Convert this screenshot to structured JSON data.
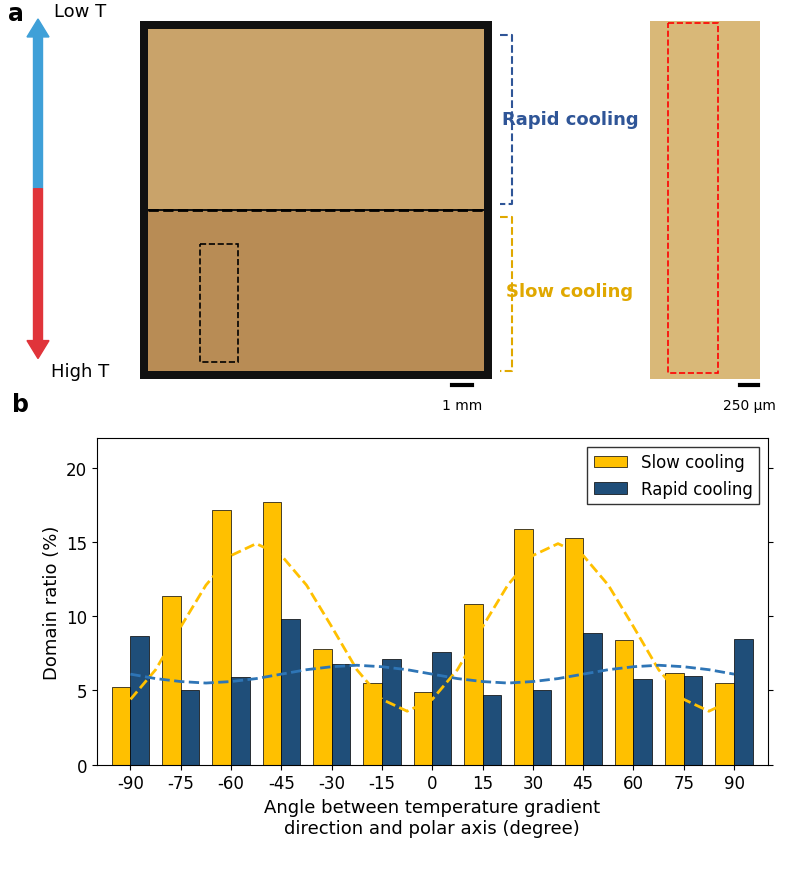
{
  "panel_labels": [
    "a",
    "b"
  ],
  "panel_a": {
    "temperature_axis": {
      "top": "Low T",
      "bottom": "High T"
    },
    "regions": [
      "Rapid cooling",
      "Slow cooling"
    ],
    "scale_bars": [
      "1 mm",
      "250 μm"
    ]
  },
  "chart_data": {
    "type": "bar",
    "xlabel": "Angle between temperature gradient\ndirection and polar axis (degree)",
    "ylabel": "Domain ratio (%)",
    "x": [
      -90,
      -75,
      -60,
      -45,
      -30,
      -15,
      0,
      15,
      30,
      45,
      60,
      75,
      90
    ],
    "xlim": [
      -100,
      100
    ],
    "xticks": [
      -90,
      -75,
      -60,
      -45,
      -30,
      -15,
      0,
      15,
      30,
      45,
      60,
      75,
      90
    ],
    "ylim": [
      0,
      22
    ],
    "yticks": [
      0,
      5,
      10,
      15,
      20
    ],
    "grid": false,
    "legend": "upper right",
    "series": [
      {
        "name": "Slow cooling",
        "type": "bar",
        "color": "#ffc000",
        "values": [
          5.2,
          11.4,
          17.2,
          17.7,
          7.8,
          5.5,
          4.9,
          10.8,
          15.9,
          15.3,
          8.4,
          6.2,
          5.5
        ]
      },
      {
        "name": "Rapid cooling",
        "type": "bar",
        "color": "#1f4e79",
        "values": [
          8.7,
          5.0,
          5.9,
          9.8,
          6.8,
          7.1,
          7.6,
          4.7,
          5.0,
          8.9,
          5.8,
          6.0,
          8.5
        ]
      },
      {
        "type": "line",
        "color": "#ffc000",
        "line_style": "dashed",
        "x": [
          -90,
          -82.5,
          -75,
          -67.5,
          -60,
          -52.5,
          -45,
          -37.5,
          -30,
          -22.5,
          -15,
          -7.5,
          0,
          7.5,
          15,
          22.5,
          30,
          37.5,
          45,
          52.5,
          60,
          67.5,
          75,
          82.5,
          90
        ],
        "values": [
          4.4,
          6.4,
          9.3,
          12.1,
          14.1,
          14.9,
          14.1,
          12.1,
          9.3,
          6.4,
          4.4,
          3.6,
          4.4,
          6.4,
          9.3,
          12.1,
          14.1,
          14.9,
          14.1,
          12.1,
          9.3,
          6.4,
          4.4,
          3.6,
          4.4
        ]
      },
      {
        "type": "line",
        "color": "#2e75b6",
        "line_style": "dashed",
        "x": [
          -90,
          -82.5,
          -75,
          -67.5,
          -60,
          -52.5,
          -45,
          -37.5,
          -30,
          -22.5,
          -15,
          -7.5,
          0,
          7.5,
          15,
          22.5,
          30,
          37.5,
          45,
          52.5,
          60,
          67.5,
          75,
          82.5,
          90
        ],
        "values": [
          6.1,
          5.8,
          5.6,
          5.5,
          5.6,
          5.8,
          6.1,
          6.4,
          6.6,
          6.7,
          6.6,
          6.4,
          6.1,
          5.8,
          5.6,
          5.5,
          5.6,
          5.8,
          6.1,
          6.4,
          6.6,
          6.7,
          6.6,
          6.4,
          6.1
        ]
      }
    ]
  }
}
